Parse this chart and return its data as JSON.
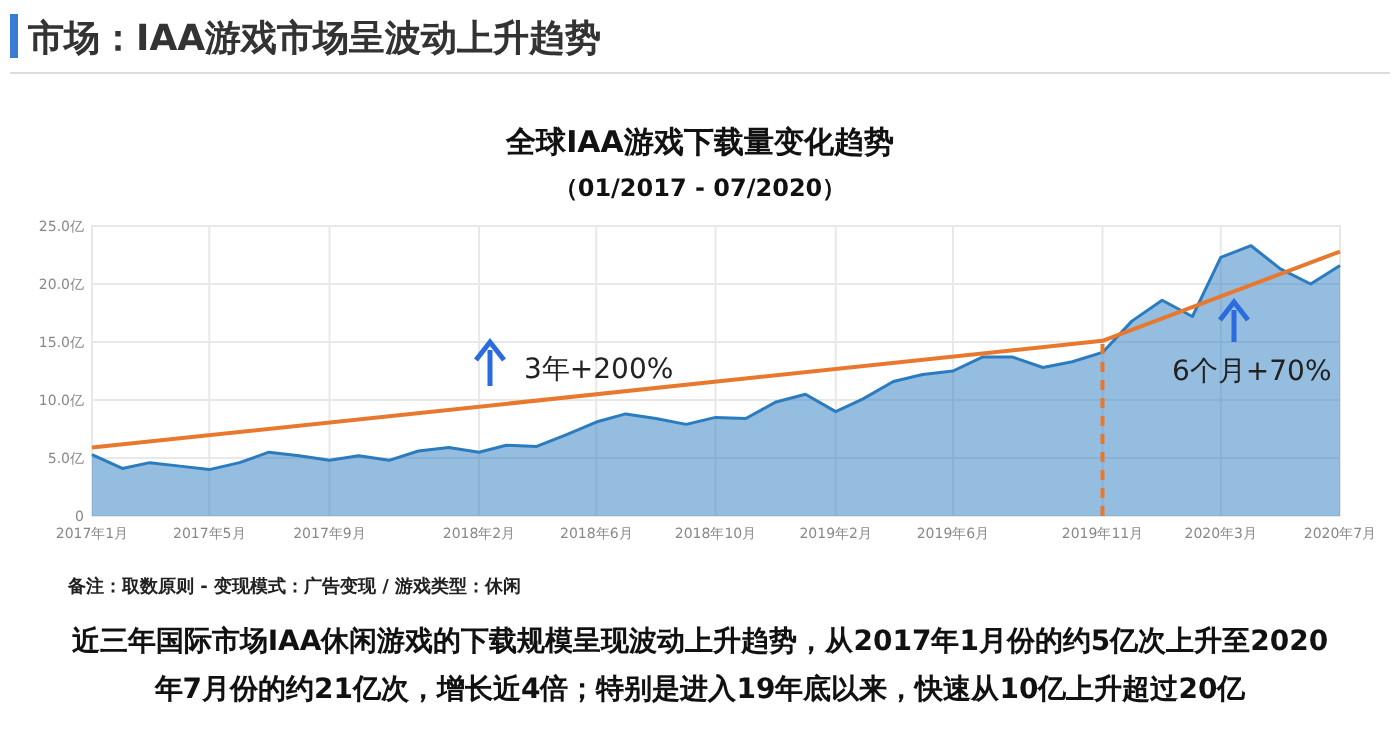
{
  "chart_data": {
    "type": "area",
    "title": "市场：IAA游戏市场呈波动上升趋势",
    "subtitle": "全球IAA游戏下载量变化趋势",
    "annotations": [
      "（01/2017 - 07/2020）",
      "3年+200%",
      "6个月+70%",
      "备注：取数原则 - 变现模式：广告变现 / 游戏类型：休闲",
      "近三年国际市场IAA休闲游戏的下载规模呈现波动上升趋势，从2017年1月份的约5亿次上升至2020年7月份的约21亿次，增长近4倍；特别是进入19年底以来，快速从10亿上升超过20亿"
    ],
    "x": [
      "2017-01",
      "2017-02",
      "2017-03",
      "2017-04",
      "2017-05",
      "2017-06",
      "2017-07",
      "2017-08",
      "2017-09",
      "2017-10",
      "2017-11",
      "2017-12",
      "2018-01",
      "2018-02",
      "2018-03",
      "2018-04",
      "2018-05",
      "2018-06",
      "2018-07",
      "2018-08",
      "2018-09",
      "2018-10",
      "2018-11",
      "2018-12",
      "2019-01",
      "2019-02",
      "2019-03",
      "2019-04",
      "2019-05",
      "2019-06",
      "2019-07",
      "2019-08",
      "2019-09",
      "2019-10",
      "2019-11",
      "2019-12",
      "2020-01",
      "2020-02",
      "2020-03",
      "2020-04",
      "2020-05",
      "2020-06",
      "2020-07"
    ],
    "series": [
      {
        "color": "#2b7bbf",
        "values": [
          5.3,
          4.1,
          4.6,
          4.3,
          4.0,
          4.6,
          5.5,
          5.2,
          4.8,
          5.2,
          4.8,
          5.6,
          5.9,
          5.5,
          6.1,
          6.0,
          7.0,
          8.1,
          8.8,
          8.4,
          7.9,
          8.5,
          8.4,
          9.8,
          10.5,
          9.0,
          10.1,
          11.6,
          12.2,
          12.5,
          13.7,
          13.7,
          12.8,
          13.3,
          14.1,
          16.8,
          18.6,
          17.2,
          22.3,
          23.3,
          21.3,
          20.0,
          21.6
        ]
      },
      {
        "type": "line",
        "color": "#e8782e",
        "x": [
          "2017-01",
          "2019-11",
          "2020-07"
        ],
        "values": [
          5.9,
          15.1,
          22.8
        ]
      }
    ],
    "xlim": [
      "2017-01",
      "2020-07"
    ],
    "xticks": [
      {
        "value": "2017-01",
        "label": "2017年1月"
      },
      {
        "value": "2017-05",
        "label": "2017年5月"
      },
      {
        "value": "2017-09",
        "label": "2017年9月"
      },
      {
        "value": "2018-02",
        "label": "2018年2月"
      },
      {
        "value": "2018-06",
        "label": "2018年6月"
      },
      {
        "value": "2018-10",
        "label": "2018年10月"
      },
      {
        "value": "2019-02",
        "label": "2019年2月"
      },
      {
        "value": "2019-06",
        "label": "2019年6月"
      },
      {
        "value": "2019-11",
        "label": "2019年11月"
      },
      {
        "value": "2020-03",
        "label": "2020年3月"
      },
      {
        "value": "2020-07",
        "label": "2020年7月"
      }
    ],
    "ylim": [
      0,
      25
    ],
    "yticks": [
      0,
      {
        "value": 5,
        "label": "5.0亿"
      },
      {
        "value": 10,
        "label": "10.0亿"
      },
      {
        "value": 15,
        "label": "15.0亿"
      },
      {
        "value": 20,
        "label": "20.0亿"
      },
      {
        "value": 25,
        "label": "25.0亿"
      }
    ],
    "ref_lines": [
      {
        "axis": "x",
        "value": "2019-11",
        "color": "#e8782e",
        "line_style": "dashed"
      }
    ],
    "grid": true,
    "line_style": "solid"
  }
}
